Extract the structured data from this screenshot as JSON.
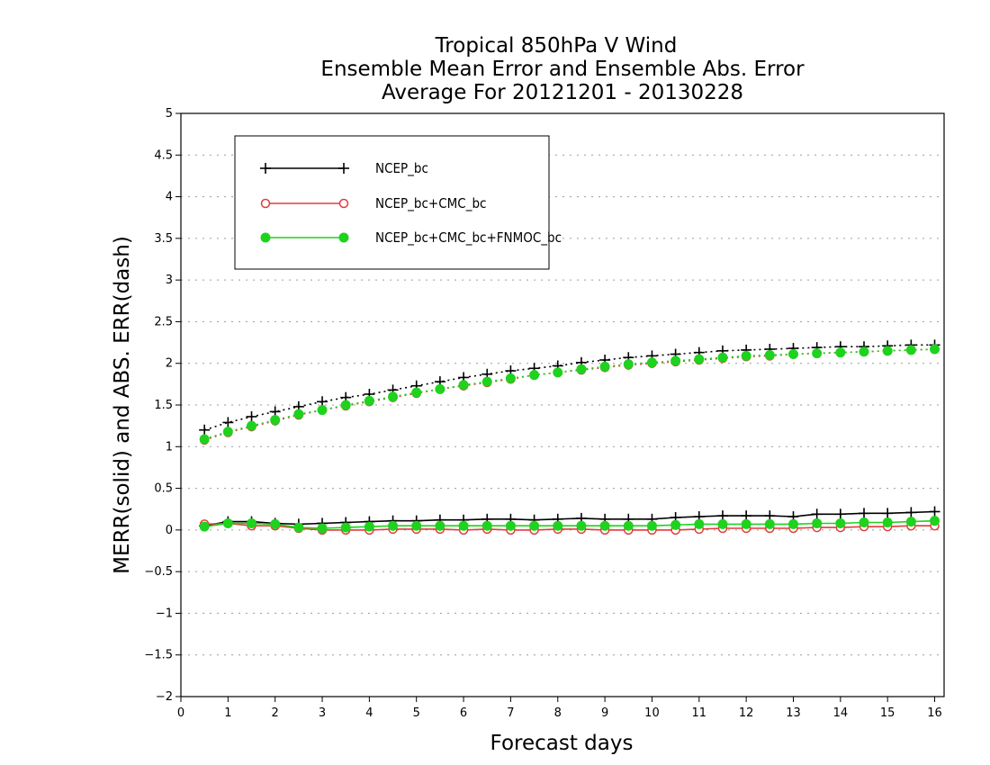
{
  "chart_data": {
    "type": "line",
    "title": [
      "Tropical 850hPa V Wind",
      "Ensemble Mean Error and Ensemble Abs. Error",
      "Average For 20121201 - 20130228"
    ],
    "xlabel": "Forecast days",
    "ylabel": "MERR(solid) and ABS. ERR(dash)",
    "xlim": [
      0,
      16.2
    ],
    "ylim": [
      -2,
      5
    ],
    "xticks": [
      0,
      1,
      2,
      3,
      4,
      5,
      6,
      7,
      8,
      9,
      10,
      11,
      12,
      13,
      14,
      15,
      16
    ],
    "yticks": [
      -2,
      -1.5,
      -1,
      -0.5,
      0,
      0.5,
      1,
      1.5,
      2,
      2.5,
      3,
      3.5,
      4,
      4.5,
      5
    ],
    "grid": "horizontal dotted",
    "legend_position": "top-left",
    "x": [
      0.5,
      1,
      1.5,
      2,
      2.5,
      3,
      3.5,
      4,
      4.5,
      5,
      5.5,
      6,
      6.5,
      7,
      7.5,
      8,
      8.5,
      9,
      9.5,
      10,
      10.5,
      11,
      11.5,
      12,
      12.5,
      13,
      13.5,
      14,
      14.5,
      15,
      15.5,
      16
    ],
    "series": [
      {
        "name": "NCEP_bc",
        "color": "#000000",
        "marker": "plus",
        "merr": [
          0.05,
          0.1,
          0.1,
          0.08,
          0.07,
          0.08,
          0.09,
          0.1,
          0.11,
          0.11,
          0.12,
          0.12,
          0.13,
          0.13,
          0.12,
          0.13,
          0.14,
          0.13,
          0.13,
          0.13,
          0.15,
          0.16,
          0.17,
          0.17,
          0.17,
          0.16,
          0.19,
          0.19,
          0.2,
          0.2,
          0.21,
          0.22
        ],
        "abs_err": [
          1.2,
          1.29,
          1.36,
          1.42,
          1.48,
          1.54,
          1.59,
          1.63,
          1.68,
          1.73,
          1.78,
          1.83,
          1.87,
          1.91,
          1.94,
          1.97,
          2.01,
          2.04,
          2.07,
          2.09,
          2.11,
          2.13,
          2.15,
          2.16,
          2.17,
          2.18,
          2.19,
          2.2,
          2.2,
          2.21,
          2.22,
          2.22
        ]
      },
      {
        "name": "NCEP_bc+CMC_bc",
        "color": "#e03c3c",
        "marker": "open-circle",
        "merr": [
          0.07,
          0.08,
          0.05,
          0.05,
          0.02,
          0.0,
          0.0,
          0.0,
          0.01,
          0.01,
          0.01,
          0.0,
          0.01,
          0.0,
          0.0,
          0.01,
          0.01,
          0.0,
          0.0,
          0.0,
          0.0,
          0.01,
          0.02,
          0.02,
          0.02,
          0.02,
          0.03,
          0.03,
          0.04,
          0.04,
          0.05,
          0.05
        ],
        "abs_err": [
          1.08,
          1.17,
          1.24,
          1.31,
          1.38,
          1.44,
          1.49,
          1.54,
          1.59,
          1.64,
          1.69,
          1.73,
          1.77,
          1.81,
          1.86,
          1.89,
          1.92,
          1.95,
          1.98,
          2.0,
          2.02,
          2.04,
          2.06,
          2.08,
          2.09,
          2.11,
          2.12,
          2.13,
          2.14,
          2.15,
          2.16,
          2.17
        ]
      },
      {
        "name": "NCEP_bc+CMC_bc+FNMOC_bc",
        "color": "#1ed21e",
        "marker": "filled-circle",
        "merr": [
          0.04,
          0.08,
          0.08,
          0.07,
          0.03,
          0.02,
          0.03,
          0.04,
          0.05,
          0.05,
          0.05,
          0.05,
          0.05,
          0.05,
          0.05,
          0.05,
          0.05,
          0.05,
          0.05,
          0.05,
          0.06,
          0.07,
          0.07,
          0.07,
          0.07,
          0.07,
          0.08,
          0.08,
          0.09,
          0.09,
          0.1,
          0.11
        ],
        "abs_err": [
          1.09,
          1.18,
          1.25,
          1.32,
          1.39,
          1.44,
          1.5,
          1.55,
          1.6,
          1.65,
          1.69,
          1.74,
          1.78,
          1.82,
          1.86,
          1.89,
          1.93,
          1.96,
          1.99,
          2.01,
          2.03,
          2.05,
          2.07,
          2.09,
          2.1,
          2.11,
          2.12,
          2.13,
          2.14,
          2.15,
          2.16,
          2.17
        ]
      }
    ]
  }
}
